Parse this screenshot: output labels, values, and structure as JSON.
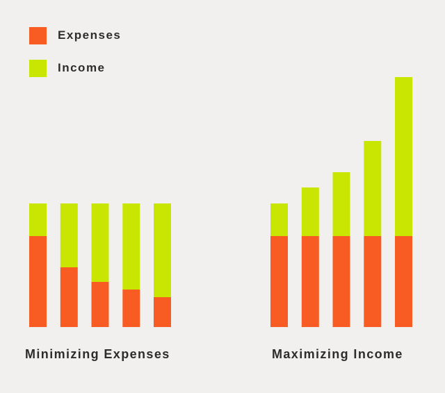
{
  "legend": {
    "expenses_label": "Expenses",
    "income_label": "Income"
  },
  "colors": {
    "expenses": "#f95c22",
    "income": "#c9e602",
    "background": "#f1f0ee",
    "text": "#2c2c2c"
  },
  "chart_data": [
    {
      "type": "bar",
      "stacked": true,
      "title": "Minimizing Expenses",
      "categories": [
        "",
        "",
        "",
        "",
        ""
      ],
      "series": [
        {
          "name": "Expenses",
          "values": [
            131,
            86,
            65,
            54,
            43
          ]
        },
        {
          "name": "Income",
          "values": [
            47,
            92,
            113,
            124,
            135
          ]
        }
      ],
      "ylim": [
        0,
        360
      ],
      "grid": false,
      "legend": "top-left"
    },
    {
      "type": "bar",
      "stacked": true,
      "title": "Maximizing Income",
      "categories": [
        "",
        "",
        "",
        "",
        ""
      ],
      "series": [
        {
          "name": "Expenses",
          "values": [
            131,
            131,
            131,
            131,
            131
          ]
        },
        {
          "name": "Income",
          "values": [
            47,
            70,
            92,
            137,
            229
          ]
        }
      ],
      "ylim": [
        0,
        360
      ],
      "grid": false,
      "legend": "top-left"
    }
  ]
}
